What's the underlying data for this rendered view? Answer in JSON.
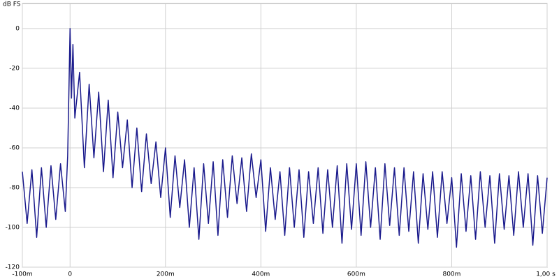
{
  "chart_data": {
    "type": "line",
    "ylabel": "dB FS",
    "x": [
      -0.1,
      -0.09,
      -0.08,
      -0.07,
      -0.06,
      -0.05,
      -0.04,
      -0.03,
      -0.02,
      -0.01,
      -0.005,
      0,
      0.003,
      0.006,
      0.01,
      0.02,
      0.03,
      0.04,
      0.05,
      0.06,
      0.07,
      0.08,
      0.09,
      0.1,
      0.11,
      0.12,
      0.13,
      0.14,
      0.15,
      0.16,
      0.17,
      0.18,
      0.19,
      0.2,
      0.21,
      0.22,
      0.23,
      0.24,
      0.25,
      0.26,
      0.27,
      0.28,
      0.29,
      0.3,
      0.31,
      0.32,
      0.33,
      0.34,
      0.35,
      0.36,
      0.37,
      0.38,
      0.39,
      0.4,
      0.41,
      0.42,
      0.43,
      0.44,
      0.45,
      0.46,
      0.47,
      0.48,
      0.49,
      0.5,
      0.51,
      0.52,
      0.53,
      0.54,
      0.55,
      0.56,
      0.57,
      0.58,
      0.59,
      0.6,
      0.61,
      0.62,
      0.63,
      0.64,
      0.65,
      0.66,
      0.67,
      0.68,
      0.69,
      0.7,
      0.71,
      0.72,
      0.73,
      0.74,
      0.75,
      0.76,
      0.77,
      0.78,
      0.79,
      0.8,
      0.81,
      0.82,
      0.83,
      0.84,
      0.85,
      0.86,
      0.87,
      0.88,
      0.89,
      0.9,
      0.91,
      0.92,
      0.93,
      0.94,
      0.95,
      0.96,
      0.97,
      0.98,
      0.99,
      1.0
    ],
    "series": [
      {
        "color": "#1a1a8c",
        "values": [
          -72,
          -98,
          -71,
          -105,
          -70,
          -100,
          -69,
          -96,
          -68,
          -92,
          -64,
          0,
          -35,
          -8,
          -45,
          -22,
          -70,
          -28,
          -65,
          -32,
          -72,
          -36,
          -75,
          -42,
          -70,
          -46,
          -80,
          -50,
          -82,
          -53,
          -78,
          -57,
          -85,
          -60,
          -95,
          -64,
          -90,
          -66,
          -100,
          -70,
          -106,
          -68,
          -98,
          -67,
          -104,
          -66,
          -95,
          -64,
          -88,
          -65,
          -92,
          -63,
          -85,
          -66,
          -102,
          -70,
          -96,
          -72,
          -104,
          -70,
          -100,
          -71,
          -105,
          -72,
          -98,
          -70,
          -103,
          -71,
          -100,
          -69,
          -108,
          -68,
          -101,
          -68,
          -104,
          -67,
          -100,
          -70,
          -106,
          -68,
          -99,
          -70,
          -104,
          -70,
          -102,
          -72,
          -108,
          -73,
          -101,
          -72,
          -105,
          -72,
          -98,
          -75,
          -110,
          -73,
          -102,
          -74,
          -106,
          -72,
          -100,
          -74,
          -108,
          -73,
          -101,
          -74,
          -104,
          -72,
          -100,
          -73,
          -109,
          -74,
          -103,
          -75
        ]
      }
    ],
    "xlim": [
      -0.1,
      1.0
    ],
    "xticks": [
      {
        "value": -0.1,
        "label": "-100m"
      },
      0,
      {
        "value": 0.2,
        "label": "200m"
      },
      {
        "value": 0.4,
        "label": "400m"
      },
      {
        "value": 0.6,
        "label": "600m"
      },
      {
        "value": 0.8,
        "label": "800m"
      },
      {
        "value": 1.0,
        "label": "1,00 s"
      }
    ],
    "ylim": [
      -120,
      12.6
    ],
    "yticks": [
      0,
      -20,
      -40,
      -60,
      -80,
      -100,
      -120
    ],
    "grid": true
  }
}
